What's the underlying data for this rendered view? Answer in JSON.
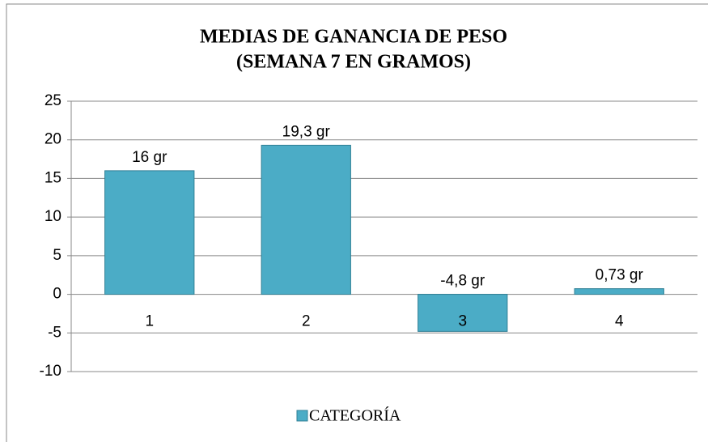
{
  "chart_data": {
    "type": "bar",
    "title": [
      "MEDIAS DE GANANCIA DE PESO",
      "(SEMANA 7 EN GRAMOS)"
    ],
    "categories": [
      "1",
      "2",
      "3",
      "4"
    ],
    "series": [
      {
        "name": "CATEGORÍA",
        "color": "#4bacc6",
        "values": [
          16,
          19.3,
          -4.8,
          0.73
        ],
        "value_labels": [
          "16 gr",
          "19,3 gr",
          "-4,8 gr",
          "0,73 gr"
        ]
      }
    ],
    "ylim": [
      -10,
      25
    ],
    "yticks": [
      -10,
      -5,
      0,
      5,
      10,
      15,
      20,
      25
    ],
    "grid": true,
    "legend": "bottom"
  }
}
